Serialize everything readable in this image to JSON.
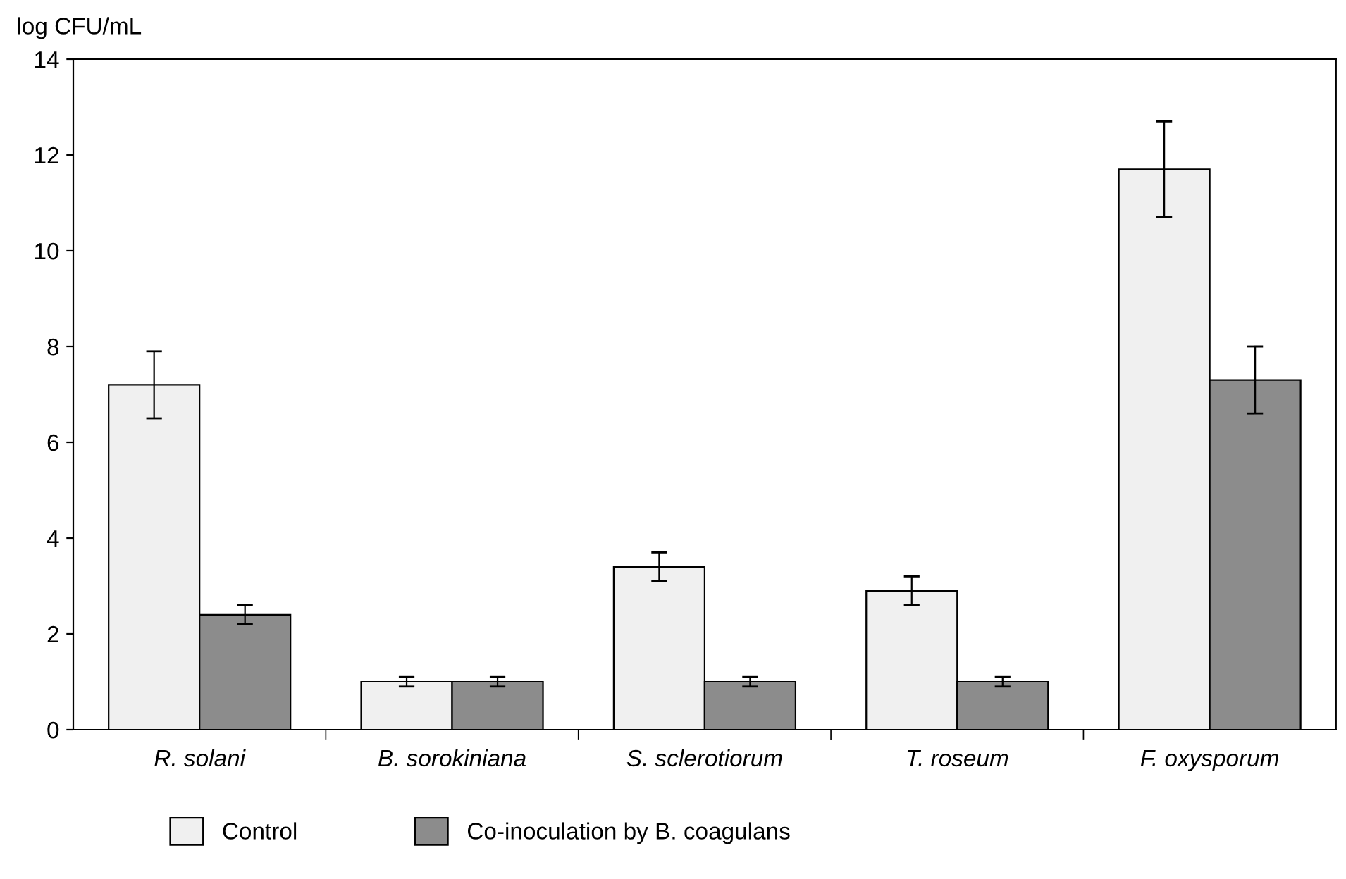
{
  "chart_data": {
    "type": "bar",
    "ylabel": "log CFU/mL",
    "categories": [
      "R. solani",
      "B. sorokiniana",
      "S. sclerotiorum",
      "T. roseum",
      "F. oxysporum"
    ],
    "series": [
      {
        "name": "Control",
        "color": "#f0f0f0",
        "values": [
          7.2,
          1.0,
          3.4,
          2.9,
          11.7
        ],
        "errors": [
          0.7,
          0.1,
          0.3,
          0.3,
          1.0
        ]
      },
      {
        "name": "Co-inoculation by B. coagulans",
        "color": "#8c8c8c",
        "values": [
          2.4,
          1.0,
          1.0,
          1.0,
          7.3
        ],
        "errors": [
          0.2,
          0.1,
          0.1,
          0.1,
          0.7
        ]
      }
    ],
    "ylim": [
      0,
      14
    ],
    "yticks": [
      0,
      2,
      4,
      6,
      8,
      10,
      12,
      14
    ],
    "grid": false,
    "legend": "bottom"
  }
}
